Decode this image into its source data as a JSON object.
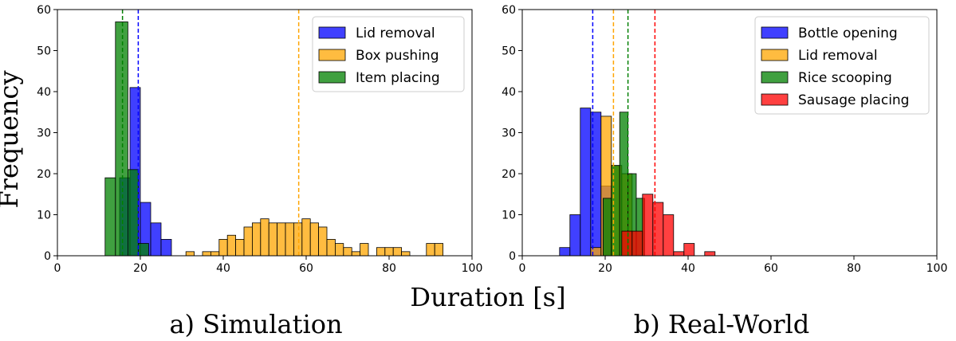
{
  "figure": {
    "ylabel": "Frequency",
    "xlabel": "Duration [s]"
  },
  "chart_data": [
    {
      "type": "histogram",
      "caption": "a) Simulation",
      "xlim": [
        0,
        100
      ],
      "ylim": [
        0,
        60
      ],
      "xticks": [
        0,
        20,
        40,
        60,
        80,
        100
      ],
      "yticks": [
        0,
        10,
        20,
        30,
        40,
        50,
        60
      ],
      "legend_position": "top-right",
      "series": [
        {
          "name": "Lid removal",
          "color": "#0000ff",
          "mean_line": 19.5,
          "bins": [
            [
              15.0,
              17.5,
              19
            ],
            [
              17.5,
              20.0,
              41
            ],
            [
              20.0,
              22.5,
              13
            ],
            [
              22.5,
              25.0,
              8
            ],
            [
              25.0,
              27.5,
              4
            ]
          ]
        },
        {
          "name": "Box pushing",
          "color": "#ffa500",
          "mean_line": 58.2,
          "bins": [
            [
              31.0,
              33.0,
              1
            ],
            [
              33.0,
              35.0,
              0
            ],
            [
              35.0,
              37.0,
              1
            ],
            [
              37.0,
              39.0,
              1
            ],
            [
              39.0,
              41.0,
              4
            ],
            [
              41.0,
              43.0,
              5
            ],
            [
              43.0,
              45.0,
              4
            ],
            [
              45.0,
              47.0,
              7
            ],
            [
              47.0,
              49.0,
              8
            ],
            [
              49.0,
              51.0,
              9
            ],
            [
              51.0,
              53.0,
              8
            ],
            [
              53.0,
              55.0,
              8
            ],
            [
              55.0,
              57.0,
              8
            ],
            [
              57.0,
              59.0,
              8
            ],
            [
              59.0,
              61.0,
              9
            ],
            [
              61.0,
              63.0,
              8
            ],
            [
              63.0,
              65.0,
              7
            ],
            [
              65.0,
              67.0,
              4
            ],
            [
              67.0,
              69.0,
              3
            ],
            [
              69.0,
              71.0,
              2
            ],
            [
              71.0,
              73.0,
              1
            ],
            [
              73.0,
              75.0,
              3
            ],
            [
              75.0,
              77.0,
              0
            ],
            [
              77.0,
              79.0,
              2
            ],
            [
              79.0,
              81.0,
              2
            ],
            [
              81.0,
              83.0,
              2
            ],
            [
              83.0,
              85.0,
              1
            ],
            [
              85.0,
              87.0,
              0
            ],
            [
              87.0,
              89.0,
              0
            ],
            [
              89.0,
              91.0,
              3
            ],
            [
              91.0,
              93.0,
              3
            ]
          ]
        },
        {
          "name": "Item placing",
          "color": "#008000",
          "mean_line": 15.7,
          "bins": [
            [
              11.5,
              14.0,
              19
            ],
            [
              14.0,
              17.0,
              57
            ],
            [
              17.0,
              19.5,
              21
            ],
            [
              19.5,
              22.0,
              3
            ]
          ]
        }
      ]
    },
    {
      "type": "histogram",
      "caption": "b) Real-World",
      "xlim": [
        0,
        100
      ],
      "ylim": [
        0,
        60
      ],
      "xticks": [
        0,
        20,
        40,
        60,
        80,
        100
      ],
      "yticks": [
        0,
        10,
        20,
        30,
        40,
        50,
        60
      ],
      "legend_position": "top-right",
      "series": [
        {
          "name": "Bottle opening",
          "color": "#0000ff",
          "mean_line": 17.0,
          "bins": [
            [
              9.0,
              11.5,
              2
            ],
            [
              11.5,
              14.0,
              10
            ],
            [
              14.0,
              16.5,
              36
            ],
            [
              16.5,
              19.0,
              35
            ],
            [
              19.0,
              21.5,
              17
            ]
          ]
        },
        {
          "name": "Lid removal",
          "color": "#ffa500",
          "mean_line": 22.0,
          "bins": [
            [
              16.5,
              19.0,
              2
            ],
            [
              19.0,
              21.5,
              34
            ],
            [
              21.5,
              24.0,
              22
            ],
            [
              24.0,
              26.5,
              20
            ]
          ]
        },
        {
          "name": "Rice scooping",
          "color": "#008000",
          "mean_line": 25.5,
          "bins": [
            [
              19.5,
              21.5,
              14
            ],
            [
              21.5,
              23.5,
              22
            ],
            [
              23.5,
              25.5,
              35
            ],
            [
              25.5,
              27.5,
              20
            ],
            [
              27.5,
              29.5,
              14
            ]
          ]
        },
        {
          "name": "Sausage placing",
          "color": "#ff0000",
          "mean_line": 32.0,
          "bins": [
            [
              24.0,
              26.5,
              6
            ],
            [
              26.5,
              29.0,
              6
            ],
            [
              29.0,
              31.5,
              15
            ],
            [
              31.5,
              34.0,
              13
            ],
            [
              34.0,
              36.5,
              10
            ],
            [
              36.5,
              39.0,
              1
            ],
            [
              39.0,
              41.5,
              3
            ],
            [
              41.5,
              44.0,
              0
            ],
            [
              44.0,
              46.5,
              1
            ]
          ]
        }
      ]
    }
  ]
}
